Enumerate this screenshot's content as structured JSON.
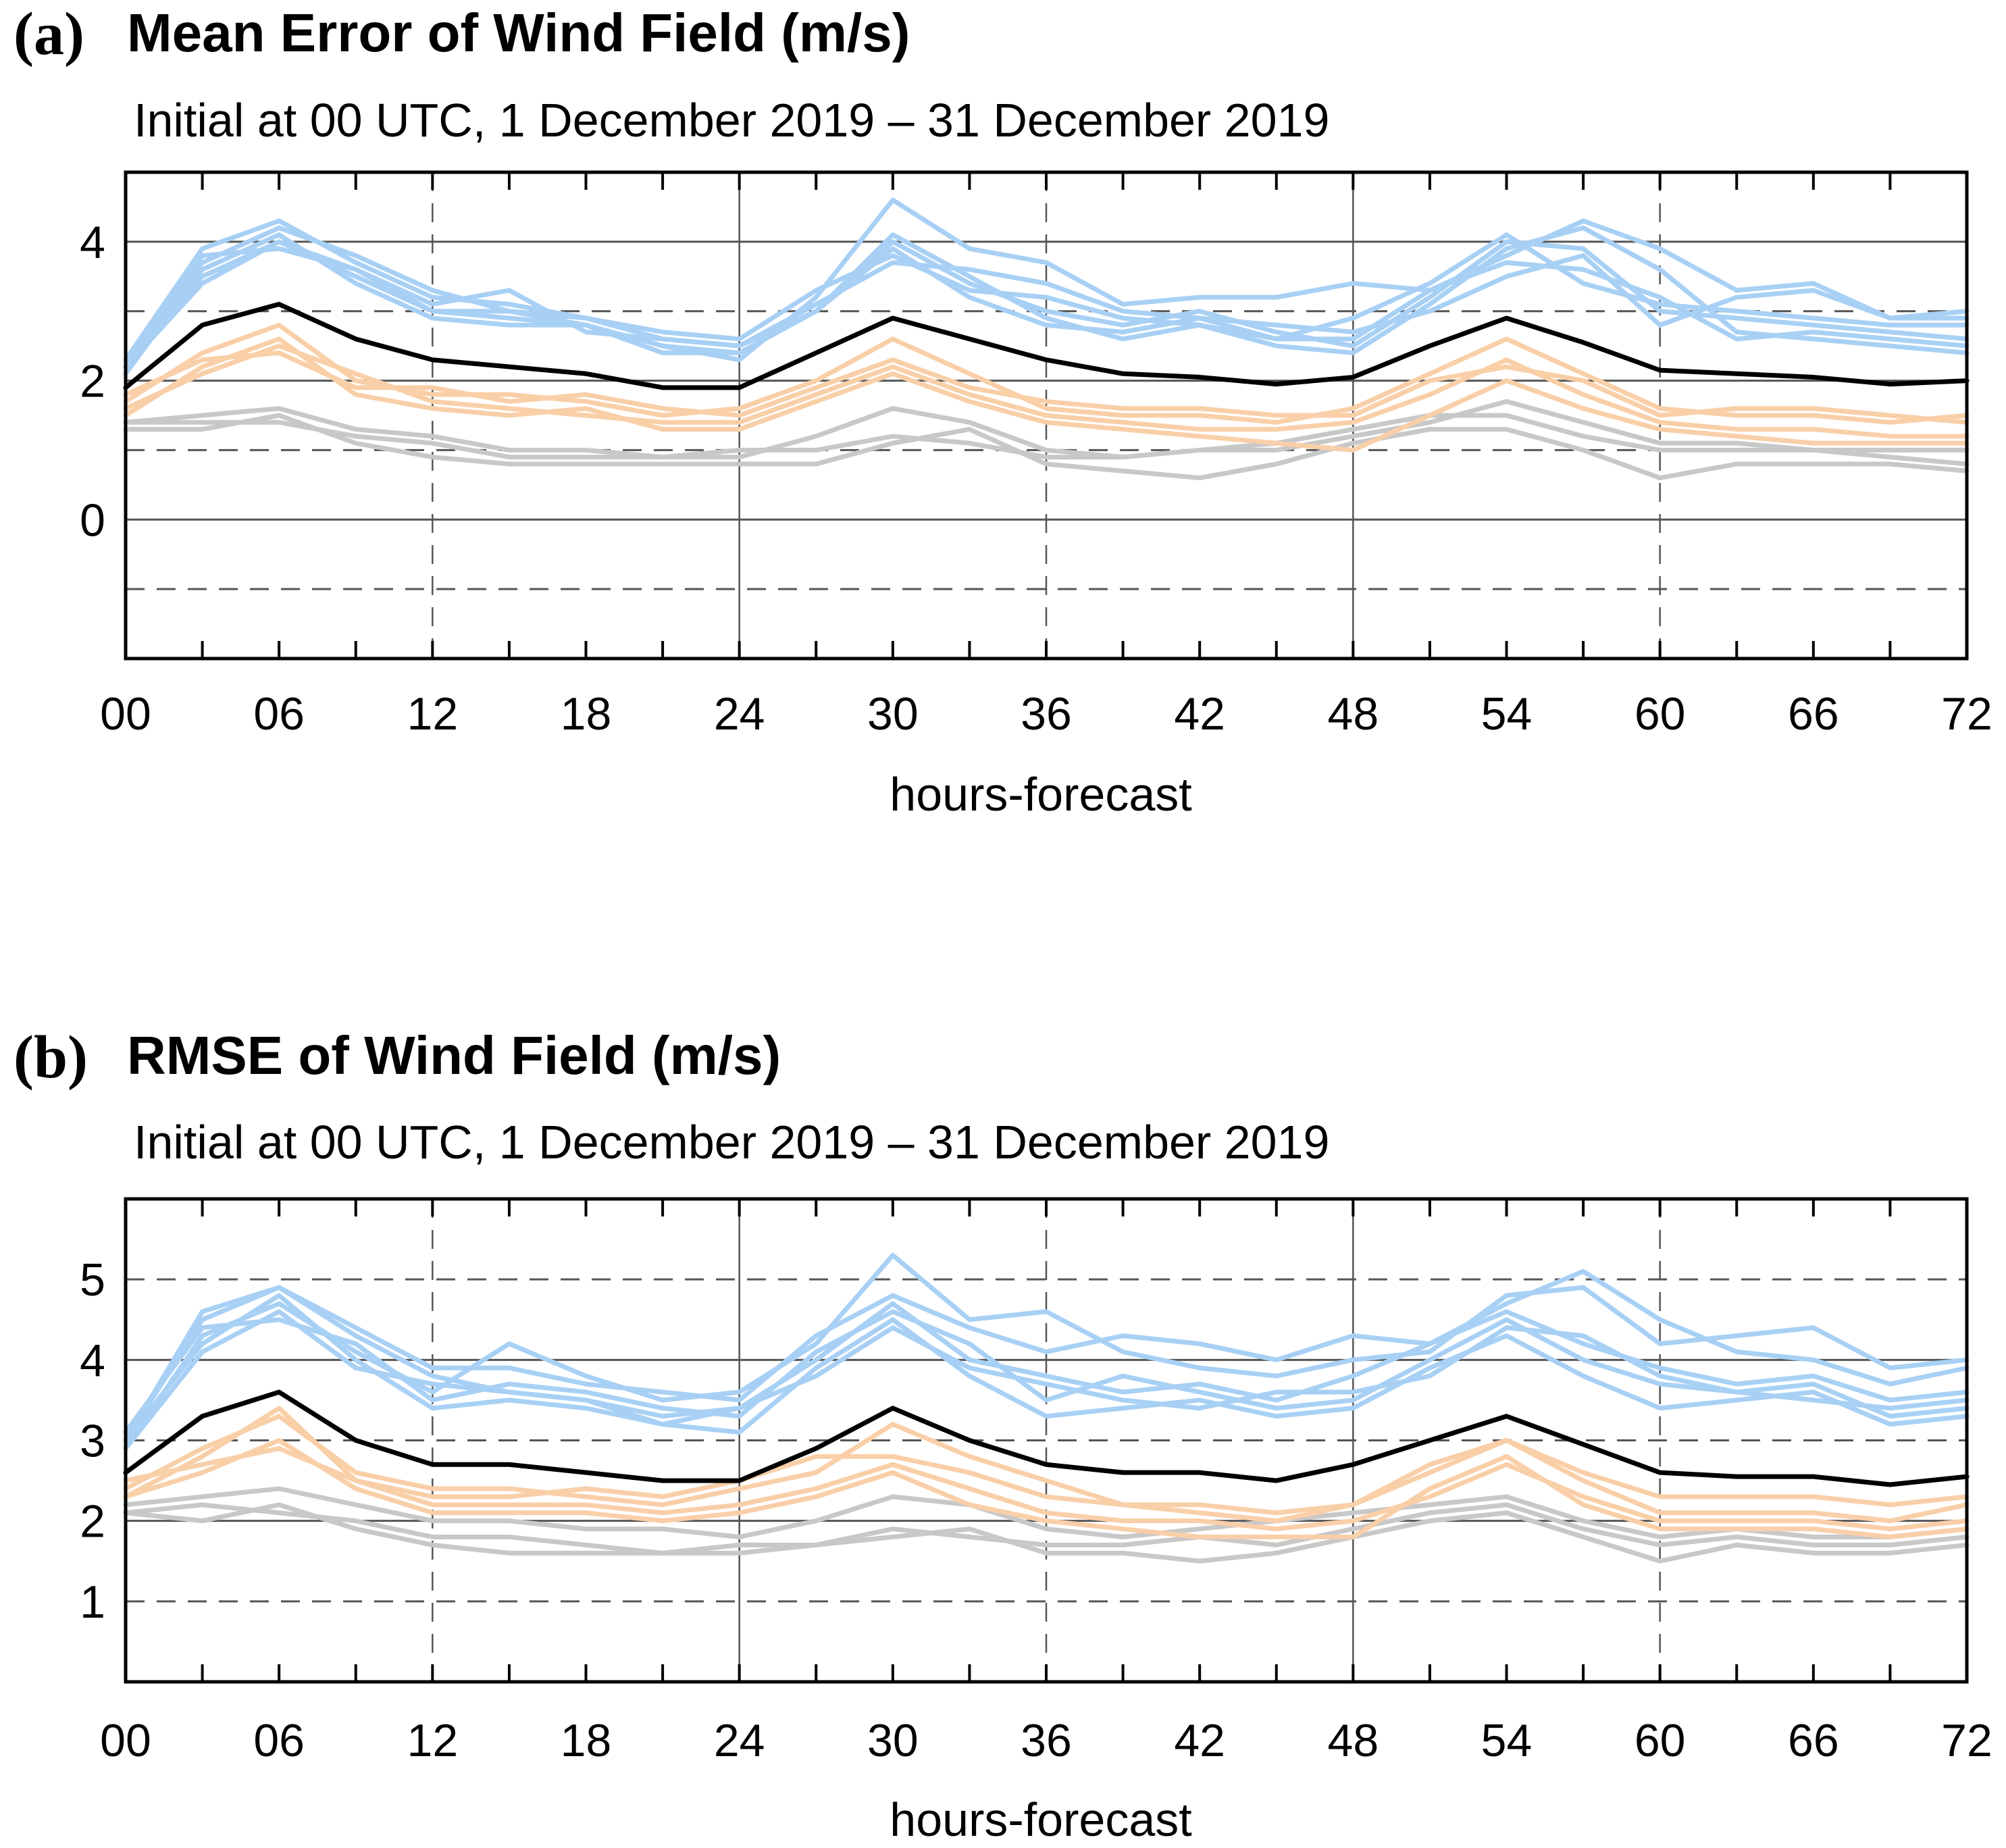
{
  "panels": [
    {
      "letter": "(a)",
      "title": "Mean Error of Wind Field (m/s)",
      "subtitle": "Initial at 00 UTC,  1 December 2019 – 31 December 2019"
    },
    {
      "letter": "(b)",
      "title": "RMSE of Wind Field (m/s)",
      "subtitle": "Initial at 00 UTC,  1 December 2019 – 31 December 2019"
    }
  ],
  "colors": {
    "blue_members": "#a8d0f5",
    "orange_members": "#f9cfa8",
    "gray_members": "#c8c8c8",
    "mean_line": "#000000",
    "grid": "#555555"
  },
  "chart_data": [
    {
      "type": "line",
      "title": "Mean Error of Wind Field (m/s)",
      "xlabel": "hours-forecast",
      "ylabel": "",
      "xlim": [
        0,
        72
      ],
      "ylim": [
        -2,
        5
      ],
      "x_ticks": [
        "00",
        "06",
        "12",
        "18",
        "24",
        "30",
        "36",
        "42",
        "48",
        "54",
        "60",
        "66",
        "72"
      ],
      "y_ticks": [
        "0",
        "2",
        "4"
      ],
      "x": [
        0,
        3,
        6,
        9,
        12,
        15,
        18,
        21,
        24,
        27,
        30,
        33,
        36,
        39,
        42,
        45,
        48,
        51,
        54,
        57,
        60,
        63,
        66,
        69,
        72
      ],
      "series": [
        {
          "name": "blue-1",
          "color": "blue",
          "values": [
            2.2,
            3.7,
            4.2,
            3.8,
            3.3,
            3.0,
            2.9,
            2.6,
            2.5,
            3.0,
            4.0,
            3.4,
            3.0,
            2.8,
            3.0,
            2.7,
            2.5,
            3.2,
            4.0,
            3.9,
            3.0,
            2.9,
            2.8,
            2.7,
            2.6
          ]
        },
        {
          "name": "blue-2",
          "color": "blue",
          "values": [
            2.2,
            3.5,
            4.0,
            3.5,
            3.0,
            3.0,
            2.8,
            2.5,
            2.3,
            3.2,
            4.6,
            3.9,
            3.7,
            3.1,
            3.2,
            3.2,
            3.4,
            3.3,
            3.8,
            4.3,
            3.9,
            3.3,
            3.4,
            2.9,
            2.9
          ]
        },
        {
          "name": "blue-3",
          "color": "blue",
          "values": [
            2.3,
            3.9,
            4.3,
            3.7,
            3.2,
            3.1,
            2.9,
            2.7,
            2.6,
            3.3,
            3.8,
            3.3,
            3.2,
            2.9,
            2.8,
            2.6,
            2.9,
            3.4,
            4.1,
            3.4,
            3.1,
            3.0,
            2.9,
            2.8,
            2.8
          ]
        },
        {
          "name": "blue-4",
          "color": "blue",
          "values": [
            2.1,
            3.6,
            4.1,
            3.4,
            2.9,
            2.8,
            2.8,
            2.4,
            2.4,
            3.0,
            4.1,
            3.5,
            2.9,
            2.6,
            2.8,
            2.5,
            2.4,
            3.1,
            3.9,
            4.2,
            3.6,
            2.7,
            2.6,
            2.5,
            2.4
          ]
        },
        {
          "name": "blue-5",
          "color": "blue",
          "values": [
            2.2,
            3.8,
            3.9,
            3.6,
            3.1,
            3.3,
            2.7,
            2.6,
            2.5,
            3.1,
            3.7,
            3.6,
            3.4,
            3.0,
            2.9,
            2.8,
            2.7,
            3.0,
            3.5,
            3.8,
            2.8,
            3.2,
            3.3,
            2.9,
            3.0
          ]
        },
        {
          "name": "blue-6",
          "color": "blue",
          "values": [
            2.2,
            3.4,
            4.0,
            3.6,
            3.0,
            2.9,
            2.8,
            2.5,
            2.4,
            3.0,
            3.9,
            3.2,
            2.8,
            2.7,
            2.9,
            2.6,
            2.6,
            3.3,
            3.7,
            3.6,
            3.2,
            2.6,
            2.7,
            2.6,
            2.5
          ]
        },
        {
          "name": "orange-1",
          "color": "orange",
          "values": [
            1.7,
            2.4,
            2.8,
            2.0,
            1.8,
            1.8,
            1.7,
            1.5,
            1.6,
            2.0,
            2.6,
            2.1,
            1.6,
            1.5,
            1.5,
            1.4,
            1.6,
            2.1,
            2.6,
            2.1,
            1.6,
            1.5,
            1.5,
            1.4,
            1.5
          ]
        },
        {
          "name": "orange-2",
          "color": "orange",
          "values": [
            1.6,
            2.1,
            2.5,
            2.1,
            1.7,
            1.6,
            1.5,
            1.4,
            1.4,
            1.8,
            2.2,
            1.8,
            1.5,
            1.4,
            1.3,
            1.3,
            1.4,
            1.8,
            2.3,
            1.8,
            1.4,
            1.3,
            1.3,
            1.2,
            1.2
          ]
        },
        {
          "name": "orange-3",
          "color": "orange",
          "values": [
            1.8,
            2.3,
            2.4,
            1.9,
            1.9,
            1.7,
            1.8,
            1.6,
            1.5,
            1.9,
            2.3,
            1.9,
            1.7,
            1.6,
            1.6,
            1.5,
            1.5,
            2.0,
            2.2,
            2.0,
            1.5,
            1.6,
            1.6,
            1.5,
            1.4
          ]
        },
        {
          "name": "orange-4",
          "color": "orange",
          "values": [
            1.5,
            2.2,
            2.6,
            1.8,
            1.6,
            1.5,
            1.6,
            1.3,
            1.3,
            1.7,
            2.1,
            1.7,
            1.4,
            1.3,
            1.2,
            1.1,
            1.0,
            1.5,
            2.0,
            1.6,
            1.3,
            1.2,
            1.1,
            1.1,
            1.1
          ]
        },
        {
          "name": "gray-1",
          "color": "gray",
          "values": [
            1.4,
            1.5,
            1.6,
            1.3,
            1.2,
            1.0,
            1.0,
            0.9,
            0.9,
            1.2,
            1.6,
            1.4,
            1.0,
            0.9,
            1.0,
            1.1,
            1.3,
            1.5,
            1.5,
            1.2,
            1.0,
            1.0,
            1.0,
            0.9,
            0.8
          ]
        },
        {
          "name": "gray-2",
          "color": "gray",
          "values": [
            1.3,
            1.3,
            1.5,
            1.1,
            0.9,
            0.8,
            0.8,
            0.8,
            0.8,
            0.8,
            1.1,
            1.3,
            0.8,
            0.7,
            0.6,
            0.8,
            1.1,
            1.3,
            1.3,
            1.0,
            0.6,
            0.8,
            0.8,
            0.8,
            0.7
          ]
        },
        {
          "name": "gray-3",
          "color": "gray",
          "values": [
            1.4,
            1.4,
            1.4,
            1.2,
            1.1,
            0.9,
            0.9,
            0.9,
            1.0,
            1.0,
            1.2,
            1.1,
            0.9,
            0.9,
            1.0,
            1.0,
            1.2,
            1.4,
            1.7,
            1.4,
            1.1,
            1.1,
            1.0,
            1.0,
            1.0
          ]
        }
      ],
      "mean": [
        1.9,
        2.8,
        3.1,
        2.6,
        2.3,
        2.2,
        2.1,
        1.9,
        1.9,
        2.4,
        2.9,
        2.6,
        2.3,
        2.1,
        2.05,
        1.95,
        2.05,
        2.5,
        2.9,
        2.55,
        2.15,
        2.1,
        2.05,
        1.95,
        2.0
      ]
    },
    {
      "type": "line",
      "title": "RMSE of Wind Field (m/s)",
      "xlabel": "hours-forecast",
      "ylabel": "",
      "xlim": [
        0,
        72
      ],
      "ylim": [
        0,
        6
      ],
      "x_ticks": [
        "00",
        "06",
        "12",
        "18",
        "24",
        "30",
        "36",
        "42",
        "48",
        "54",
        "60",
        "66",
        "72"
      ],
      "y_ticks": [
        "1",
        "2",
        "3",
        "4",
        "5"
      ],
      "x": [
        0,
        3,
        6,
        9,
        12,
        15,
        18,
        21,
        24,
        27,
        30,
        33,
        36,
        39,
        42,
        45,
        48,
        51,
        54,
        57,
        60,
        63,
        66,
        69,
        72
      ],
      "series": [
        {
          "name": "blue-1",
          "color": "blue",
          "values": [
            3.0,
            4.6,
            4.9,
            4.3,
            3.8,
            3.6,
            3.5,
            3.3,
            3.4,
            4.0,
            4.7,
            4.0,
            3.8,
            3.6,
            3.7,
            3.5,
            3.8,
            4.2,
            4.7,
            5.1,
            4.5,
            4.1,
            4.0,
            3.7,
            3.9
          ]
        },
        {
          "name": "blue-2",
          "color": "blue",
          "values": [
            2.9,
            4.3,
            4.7,
            4.1,
            3.6,
            4.2,
            3.8,
            3.5,
            3.6,
            4.2,
            5.3,
            4.5,
            4.6,
            4.1,
            3.9,
            3.8,
            4.0,
            4.1,
            4.8,
            4.9,
            4.2,
            4.3,
            4.4,
            3.9,
            4.0
          ]
        },
        {
          "name": "blue-3",
          "color": "blue",
          "values": [
            3.1,
            4.4,
            4.5,
            4.2,
            3.5,
            3.7,
            3.6,
            3.4,
            3.3,
            4.1,
            4.6,
            4.2,
            3.5,
            3.8,
            3.6,
            3.4,
            3.5,
            4.0,
            4.5,
            4.0,
            3.7,
            3.6,
            3.5,
            3.4,
            3.5
          ]
        },
        {
          "name": "blue-4",
          "color": "blue",
          "values": [
            3.0,
            4.2,
            4.8,
            4.0,
            3.4,
            3.5,
            3.4,
            3.2,
            3.1,
            3.9,
            4.5,
            3.8,
            3.3,
            3.4,
            3.5,
            3.3,
            3.4,
            3.9,
            4.3,
            3.8,
            3.4,
            3.5,
            3.6,
            3.2,
            3.3
          ]
        },
        {
          "name": "blue-5",
          "color": "blue",
          "values": [
            3.0,
            4.5,
            4.9,
            4.4,
            3.9,
            3.9,
            3.7,
            3.6,
            3.5,
            4.3,
            4.8,
            4.4,
            4.1,
            4.3,
            4.2,
            4.0,
            4.3,
            4.2,
            4.6,
            4.2,
            3.9,
            3.7,
            3.8,
            3.5,
            3.6
          ]
        },
        {
          "name": "blue-6",
          "color": "blue",
          "values": [
            2.9,
            4.1,
            4.6,
            3.9,
            3.7,
            3.6,
            3.5,
            3.2,
            3.4,
            3.8,
            4.4,
            3.9,
            3.7,
            3.5,
            3.4,
            3.6,
            3.6,
            3.8,
            4.4,
            4.3,
            3.8,
            3.6,
            3.7,
            3.3,
            3.4
          ]
        },
        {
          "name": "orange-1",
          "color": "orange",
          "values": [
            2.4,
            2.9,
            3.3,
            2.6,
            2.4,
            2.4,
            2.3,
            2.2,
            2.4,
            2.6,
            3.2,
            2.8,
            2.5,
            2.2,
            2.2,
            2.1,
            2.2,
            2.6,
            3.0,
            2.6,
            2.3,
            2.3,
            2.3,
            2.2,
            2.3
          ]
        },
        {
          "name": "orange-2",
          "color": "orange",
          "values": [
            2.3,
            2.8,
            3.4,
            2.5,
            2.2,
            2.2,
            2.2,
            2.1,
            2.2,
            2.4,
            2.7,
            2.4,
            2.1,
            2.0,
            2.0,
            1.9,
            2.0,
            2.3,
            2.7,
            2.3,
            2.0,
            2.0,
            2.0,
            1.9,
            2.0
          ]
        },
        {
          "name": "orange-3",
          "color": "orange",
          "values": [
            2.5,
            2.7,
            2.9,
            2.5,
            2.3,
            2.3,
            2.4,
            2.3,
            2.5,
            2.8,
            2.8,
            2.6,
            2.3,
            2.2,
            2.1,
            2.0,
            2.2,
            2.7,
            3.0,
            2.5,
            2.1,
            2.1,
            2.1,
            2.0,
            2.2
          ]
        },
        {
          "name": "orange-4",
          "color": "orange",
          "values": [
            2.3,
            2.6,
            3.0,
            2.4,
            2.1,
            2.1,
            2.1,
            2.0,
            2.1,
            2.3,
            2.6,
            2.2,
            2.0,
            1.9,
            1.8,
            1.8,
            1.8,
            2.4,
            2.8,
            2.2,
            1.9,
            1.9,
            1.9,
            1.8,
            1.9
          ]
        },
        {
          "name": "gray-1",
          "color": "gray",
          "values": [
            2.2,
            2.3,
            2.4,
            2.2,
            2.0,
            2.0,
            1.9,
            1.9,
            1.8,
            2.0,
            2.3,
            2.2,
            1.9,
            1.8,
            1.9,
            2.0,
            2.1,
            2.2,
            2.3,
            2.0,
            1.8,
            1.9,
            1.8,
            1.8,
            1.9
          ]
        },
        {
          "name": "gray-2",
          "color": "gray",
          "values": [
            2.1,
            2.0,
            2.2,
            1.9,
            1.7,
            1.6,
            1.6,
            1.6,
            1.7,
            1.7,
            1.8,
            1.9,
            1.6,
            1.6,
            1.5,
            1.6,
            1.8,
            2.0,
            2.1,
            1.8,
            1.5,
            1.7,
            1.6,
            1.6,
            1.7
          ]
        },
        {
          "name": "gray-3",
          "color": "gray",
          "values": [
            2.1,
            2.2,
            2.1,
            2.0,
            1.8,
            1.8,
            1.7,
            1.6,
            1.6,
            1.7,
            1.9,
            1.8,
            1.7,
            1.7,
            1.8,
            1.7,
            1.9,
            2.1,
            2.2,
            1.9,
            1.7,
            1.8,
            1.7,
            1.7,
            1.8
          ]
        }
      ],
      "mean": [
        2.6,
        3.3,
        3.6,
        3.0,
        2.7,
        2.7,
        2.6,
        2.5,
        2.5,
        2.9,
        3.4,
        3.0,
        2.7,
        2.6,
        2.6,
        2.5,
        2.7,
        3.0,
        3.3,
        2.95,
        2.6,
        2.55,
        2.55,
        2.45,
        2.55
      ]
    }
  ]
}
